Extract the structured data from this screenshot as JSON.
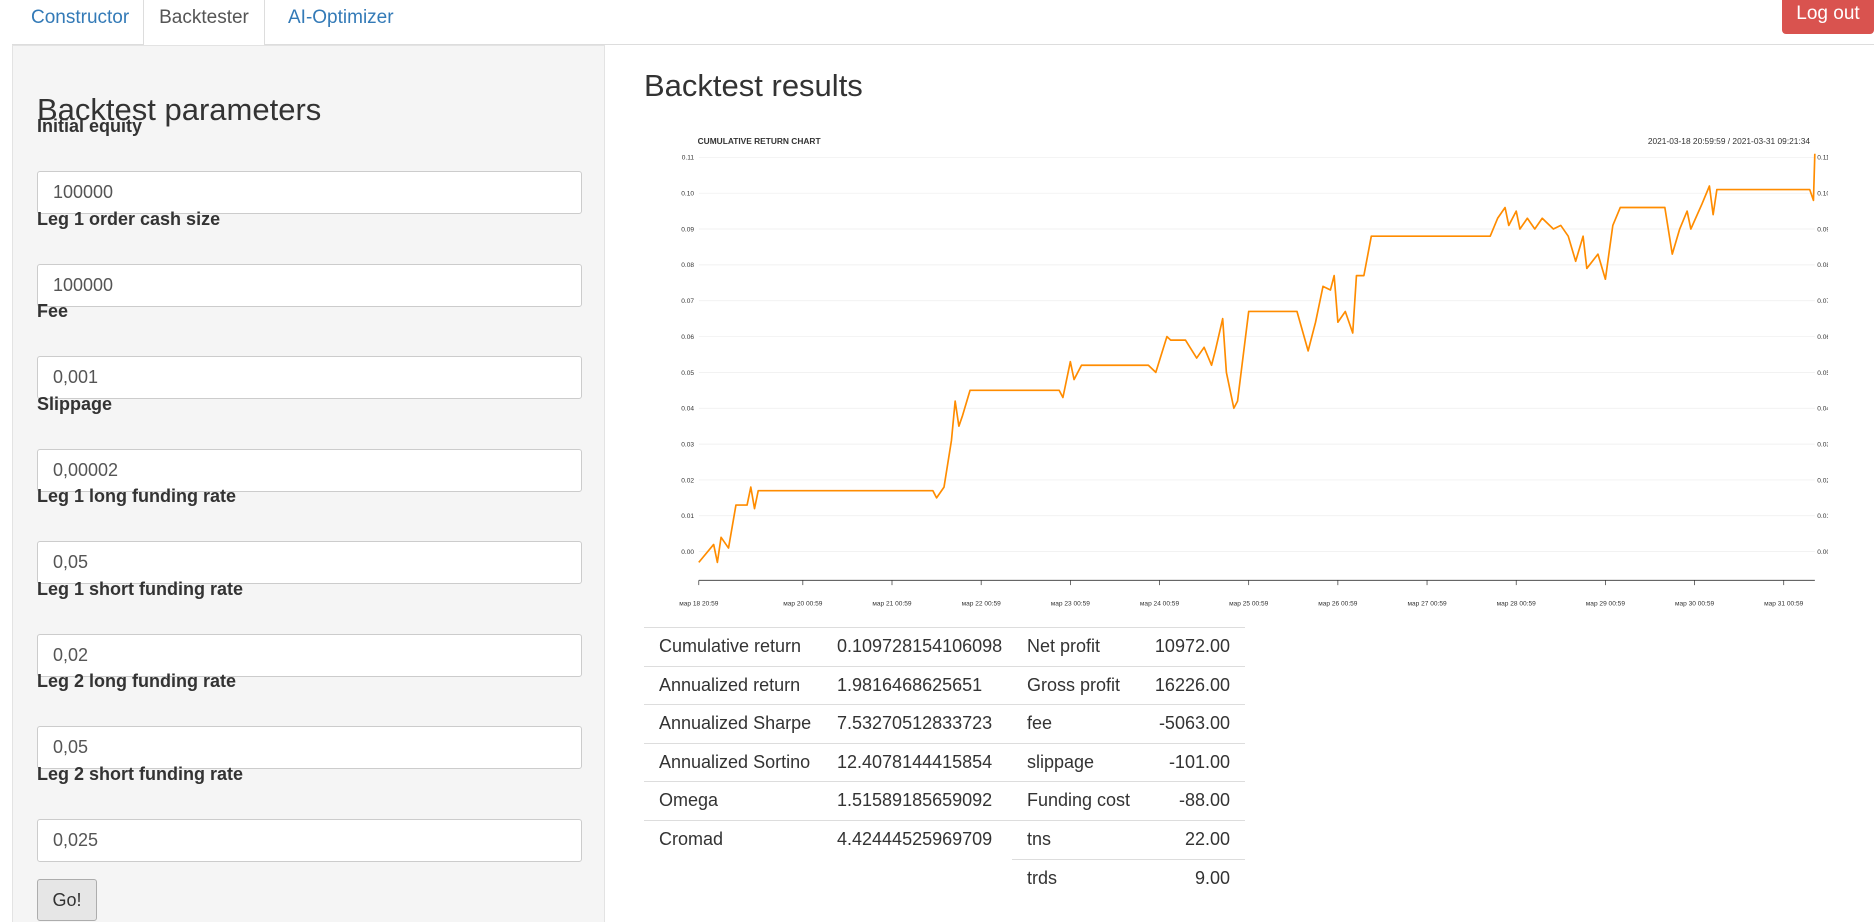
{
  "nav": {
    "tabs": [
      "Constructor",
      "Backtester",
      "AI-Optimizer"
    ],
    "logout": "Log out"
  },
  "params": {
    "title": "Backtest parameters",
    "fields": [
      {
        "label": "Initial equity",
        "value": "100000"
      },
      {
        "label": "Leg 1 order cash size",
        "value": "100000"
      },
      {
        "label": "Fee",
        "value": "0,001"
      },
      {
        "label": "Slippage",
        "value": "0,00002"
      },
      {
        "label": "Leg 1 long funding rate",
        "value": "0,05"
      },
      {
        "label": "Leg 1 short funding rate",
        "value": "0,02"
      },
      {
        "label": "Leg 2 long funding rate",
        "value": "0,05"
      },
      {
        "label": "Leg 2 short funding rate",
        "value": "0,025"
      }
    ],
    "button": "Go!"
  },
  "results": {
    "title": "Backtest results",
    "stats_left": [
      {
        "label": "Cumulative return",
        "value": "0.109728154106098"
      },
      {
        "label": "Annualized return",
        "value": "1.9816468625651"
      },
      {
        "label": "Annualized Sharpe",
        "value": "7.53270512833723"
      },
      {
        "label": "Annualized Sortino",
        "value": "12.4078144415854"
      },
      {
        "label": "Omega",
        "value": "1.51589185659092"
      },
      {
        "label": "Cromad",
        "value": "4.42444525969709"
      }
    ],
    "stats_right": [
      {
        "label": "Net profit",
        "value": "10972.00"
      },
      {
        "label": "Gross profit",
        "value": "16226.00"
      },
      {
        "label": "fee",
        "value": "-5063.00"
      },
      {
        "label": "slippage",
        "value": "-101.00"
      },
      {
        "label": "Funding cost",
        "value": "-88.00"
      },
      {
        "label": "tns",
        "value": "22.00"
      },
      {
        "label": "trds",
        "value": "9.00"
      }
    ]
  },
  "chart_data": {
    "type": "line",
    "title": "CUMULATIVE RETURN CHART",
    "range_label": "2021-03-18 20:59:59 / 2021-03-31 09:21:34",
    "color": "#ff8c00",
    "x": [
      "2021-03-18 20:59",
      "2021-03-19 00:59",
      "2021-03-19 01:59",
      "2021-03-19 02:59",
      "2021-03-19 04:59",
      "2021-03-19 06:59",
      "2021-03-19 09:59",
      "2021-03-19 10:59",
      "2021-03-19 11:59",
      "2021-03-19 12:59",
      "2021-03-21 11:59",
      "2021-03-21 12:59",
      "2021-03-21 14:59",
      "2021-03-21 16:59",
      "2021-03-21 17:59",
      "2021-03-21 18:59",
      "2021-03-21 19:59",
      "2021-03-21 21:59",
      "2021-03-21 23:59",
      "2021-03-22 21:59",
      "2021-03-22 22:59",
      "2021-03-23 00:59",
      "2021-03-23 01:59",
      "2021-03-23 03:59",
      "2021-03-23 21:59",
      "2021-03-23 23:59",
      "2021-03-24 02:59",
      "2021-03-24 03:59",
      "2021-03-24 07:59",
      "2021-03-24 10:59",
      "2021-03-24 12:59",
      "2021-03-24 14:59",
      "2021-03-24 15:59",
      "2021-03-24 17:59",
      "2021-03-24 18:59",
      "2021-03-24 20:59",
      "2021-03-24 21:59",
      "2021-03-25 00:59",
      "2021-03-25 13:59",
      "2021-03-25 16:59",
      "2021-03-25 18:59",
      "2021-03-25 20:59",
      "2021-03-25 22:59",
      "2021-03-25 23:59",
      "2021-03-26 00:59",
      "2021-03-26 02:59",
      "2021-03-26 04:59",
      "2021-03-26 05:59",
      "2021-03-26 07:59",
      "2021-03-26 09:59",
      "2021-03-27 17:59",
      "2021-03-27 19:59",
      "2021-03-27 21:59",
      "2021-03-27 22:59",
      "2021-03-28 00:59",
      "2021-03-28 01:59",
      "2021-03-28 03:59",
      "2021-03-28 05:59",
      "2021-03-28 07:59",
      "2021-03-28 10:59",
      "2021-03-28 12:59",
      "2021-03-28 14:59",
      "2021-03-28 16:59",
      "2021-03-28 18:59",
      "2021-03-28 19:59",
      "2021-03-28 22:59",
      "2021-03-29 00:59",
      "2021-03-29 02:59",
      "2021-03-29 04:59",
      "2021-03-29 16:59",
      "2021-03-29 18:59",
      "2021-03-29 20:59",
      "2021-03-29 22:59",
      "2021-03-29 23:59",
      "2021-03-30 02:59",
      "2021-03-30 04:59",
      "2021-03-30 05:59",
      "2021-03-30 06:59",
      "2021-03-31 07:59",
      "2021-03-31 08:59",
      "2021-03-31 09:21"
    ],
    "values": [
      -0.003,
      0.002,
      -0.003,
      0.004,
      0.001,
      0.013,
      0.013,
      0.018,
      0.012,
      0.017,
      0.017,
      0.015,
      0.018,
      0.031,
      0.042,
      0.035,
      0.038,
      0.045,
      0.045,
      0.045,
      0.043,
      0.053,
      0.048,
      0.052,
      0.052,
      0.05,
      0.06,
      0.059,
      0.059,
      0.054,
      0.057,
      0.052,
      0.056,
      0.065,
      0.05,
      0.04,
      0.042,
      0.067,
      0.067,
      0.056,
      0.064,
      0.074,
      0.073,
      0.077,
      0.064,
      0.067,
      0.061,
      0.077,
      0.077,
      0.088,
      0.088,
      0.093,
      0.096,
      0.091,
      0.095,
      0.09,
      0.093,
      0.09,
      0.093,
      0.09,
      0.091,
      0.088,
      0.081,
      0.088,
      0.079,
      0.083,
      0.076,
      0.091,
      0.096,
      0.096,
      0.083,
      0.09,
      0.095,
      0.09,
      0.097,
      0.102,
      0.094,
      0.101,
      0.101,
      0.098,
      0.111
    ],
    "xlim": [
      "2021-03-18 20:59:59",
      "2021-03-31 09:21:34"
    ],
    "xticks": [
      {
        "value": "2021-03-18 20:59",
        "label": "мар 18 20:59"
      },
      {
        "value": "2021-03-20 00:59",
        "label": "мар 20 00:59"
      },
      {
        "value": "2021-03-21 00:59",
        "label": "мар 21 00:59"
      },
      {
        "value": "2021-03-22 00:59",
        "label": "мар 22 00:59"
      },
      {
        "value": "2021-03-23 00:59",
        "label": "мар 23 00:59"
      },
      {
        "value": "2021-03-24 00:59",
        "label": "мар 24 00:59"
      },
      {
        "value": "2021-03-25 00:59",
        "label": "мар 25 00:59"
      },
      {
        "value": "2021-03-26 00:59",
        "label": "мар 26 00:59"
      },
      {
        "value": "2021-03-27 00:59",
        "label": "мар 27 00:59"
      },
      {
        "value": "2021-03-28 00:59",
        "label": "мар 28 00:59"
      },
      {
        "value": "2021-03-29 00:59",
        "label": "мар 29 00:59"
      },
      {
        "value": "2021-03-30 00:59",
        "label": "мар 30 00:59"
      },
      {
        "value": "2021-03-31 00:59",
        "label": "мар 31 00:59"
      }
    ],
    "ylim": [
      -0.008,
      0.112
    ],
    "yticks": [
      {
        "value": 0,
        "label": "0.00"
      },
      0.01,
      0.02,
      0.03,
      0.04,
      0.05,
      0.06,
      0.07,
      0.08,
      0.09,
      {
        "value": 0.1,
        "label": "0.10"
      },
      0.11
    ],
    "grid": true
  }
}
